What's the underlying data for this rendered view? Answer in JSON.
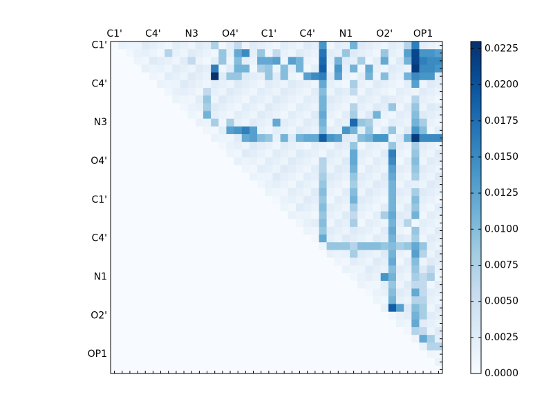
{
  "chart_data": {
    "type": "heatmap",
    "title": "",
    "xlabel": "",
    "ylabel": "",
    "tick_labels": [
      "C1'",
      "C4'",
      "N3",
      "O4'",
      "C1'",
      "C4'",
      "N1",
      "O2'",
      "OP1"
    ],
    "n_cells": 43,
    "colorbar": {
      "min": 0.0,
      "max": 0.023,
      "ticks": [
        0.0,
        0.0025,
        0.005,
        0.0075,
        0.01,
        0.0125,
        0.015,
        0.0175,
        0.02,
        0.0225
      ],
      "tick_labels": [
        "0.0000",
        "0.0025",
        "0.0050",
        "0.0075",
        "0.0100",
        "0.0125",
        "0.0150",
        "0.0175",
        "0.0200",
        "0.0225"
      ],
      "colormap": [
        "#f7fbff",
        "#deebf7",
        "#c6dbef",
        "#9ecae1",
        "#6baed6",
        "#4292c6",
        "#2171b5",
        "#08519c",
        "#08306b"
      ]
    },
    "strong_cells": [
      [
        0,
        13,
        0.0075
      ],
      [
        0,
        16,
        0.006
      ],
      [
        0,
        27,
        0.014
      ],
      [
        0,
        31,
        0.011
      ],
      [
        0,
        38,
        0.007
      ],
      [
        0,
        39,
        0.016
      ],
      [
        1,
        7,
        0.007
      ],
      [
        1,
        14,
        0.009
      ],
      [
        1,
        16,
        0.012
      ],
      [
        1,
        17,
        0.015
      ],
      [
        1,
        19,
        0.009
      ],
      [
        1,
        21,
        0.006
      ],
      [
        1,
        27,
        0.017
      ],
      [
        1,
        30,
        0.009
      ],
      [
        1,
        35,
        0.009
      ],
      [
        1,
        38,
        0.013
      ],
      [
        1,
        39,
        0.021
      ],
      [
        1,
        40,
        0.014
      ],
      [
        1,
        41,
        0.014
      ],
      [
        1,
        42,
        0.013
      ],
      [
        2,
        10,
        0.006
      ],
      [
        2,
        14,
        0.009
      ],
      [
        2,
        16,
        0.01
      ],
      [
        2,
        19,
        0.012
      ],
      [
        2,
        20,
        0.012
      ],
      [
        2,
        21,
        0.013
      ],
      [
        2,
        23,
        0.013
      ],
      [
        2,
        24,
        0.011
      ],
      [
        2,
        27,
        0.018
      ],
      [
        2,
        29,
        0.011
      ],
      [
        2,
        32,
        0.008
      ],
      [
        2,
        35,
        0.012
      ],
      [
        2,
        38,
        0.011
      ],
      [
        2,
        39,
        0.021
      ],
      [
        2,
        40,
        0.016
      ],
      [
        2,
        41,
        0.015
      ],
      [
        2,
        42,
        0.015
      ],
      [
        3,
        13,
        0.016
      ],
      [
        3,
        16,
        0.011
      ],
      [
        3,
        17,
        0.011
      ],
      [
        3,
        19,
        0.008
      ],
      [
        3,
        20,
        0.009
      ],
      [
        3,
        22,
        0.01
      ],
      [
        3,
        24,
        0.011
      ],
      [
        3,
        27,
        0.019
      ],
      [
        3,
        29,
        0.014
      ],
      [
        3,
        31,
        0.011
      ],
      [
        3,
        33,
        0.012
      ],
      [
        3,
        39,
        0.022
      ],
      [
        3,
        40,
        0.015
      ],
      [
        3,
        41,
        0.015
      ],
      [
        3,
        42,
        0.014
      ],
      [
        4,
        13,
        0.0228
      ],
      [
        4,
        15,
        0.009
      ],
      [
        4,
        16,
        0.009
      ],
      [
        4,
        20,
        0.009
      ],
      [
        4,
        22,
        0.01
      ],
      [
        4,
        25,
        0.013
      ],
      [
        4,
        26,
        0.015
      ],
      [
        4,
        27,
        0.016
      ],
      [
        4,
        29,
        0.013
      ],
      [
        4,
        33,
        0.011
      ],
      [
        4,
        35,
        0.01
      ],
      [
        4,
        38,
        0.011
      ],
      [
        4,
        39,
        0.015
      ],
      [
        4,
        40,
        0.014
      ],
      [
        4,
        41,
        0.014
      ],
      [
        5,
        27,
        0.012
      ],
      [
        5,
        31,
        0.008
      ],
      [
        5,
        39,
        0.013
      ],
      [
        6,
        12,
        0.006
      ],
      [
        6,
        27,
        0.01
      ],
      [
        6,
        31,
        0.006
      ],
      [
        7,
        12,
        0.009
      ],
      [
        7,
        27,
        0.011
      ],
      [
        7,
        39,
        0.007
      ],
      [
        8,
        12,
        0.008
      ],
      [
        8,
        27,
        0.011
      ],
      [
        8,
        31,
        0.007
      ],
      [
        8,
        36,
        0.009
      ],
      [
        8,
        39,
        0.009
      ],
      [
        9,
        12,
        0.011
      ],
      [
        9,
        27,
        0.012
      ],
      [
        9,
        31,
        0.008
      ],
      [
        9,
        34,
        0.011
      ],
      [
        9,
        39,
        0.01
      ],
      [
        10,
        13,
        0.008
      ],
      [
        10,
        15,
        0.008
      ],
      [
        10,
        21,
        0.012
      ],
      [
        10,
        27,
        0.011
      ],
      [
        10,
        31,
        0.018
      ],
      [
        10,
        32,
        0.009
      ],
      [
        10,
        33,
        0.008
      ],
      [
        10,
        39,
        0.011
      ],
      [
        10,
        40,
        0.008
      ],
      [
        11,
        15,
        0.013
      ],
      [
        11,
        16,
        0.014
      ],
      [
        11,
        17,
        0.016
      ],
      [
        11,
        18,
        0.013
      ],
      [
        11,
        27,
        0.01
      ],
      [
        11,
        30,
        0.014
      ],
      [
        11,
        31,
        0.011
      ],
      [
        11,
        33,
        0.009
      ],
      [
        11,
        36,
        0.009
      ],
      [
        11,
        39,
        0.014
      ],
      [
        11,
        40,
        0.01
      ],
      [
        12,
        17,
        0.012
      ],
      [
        12,
        18,
        0.013
      ],
      [
        12,
        19,
        0.01
      ],
      [
        12,
        20,
        0.009
      ],
      [
        12,
        22,
        0.011
      ],
      [
        12,
        24,
        0.011
      ],
      [
        12,
        25,
        0.012
      ],
      [
        12,
        26,
        0.012
      ],
      [
        12,
        27,
        0.019
      ],
      [
        12,
        28,
        0.014
      ],
      [
        12,
        29,
        0.013
      ],
      [
        12,
        32,
        0.01
      ],
      [
        12,
        33,
        0.011
      ],
      [
        12,
        34,
        0.014
      ],
      [
        12,
        35,
        0.014
      ],
      [
        12,
        38,
        0.011
      ],
      [
        12,
        39,
        0.022
      ],
      [
        12,
        40,
        0.015
      ],
      [
        12,
        41,
        0.015
      ],
      [
        12,
        42,
        0.015
      ],
      [
        13,
        31,
        0.009
      ],
      [
        13,
        36,
        0.009
      ],
      [
        13,
        39,
        0.008
      ],
      [
        14,
        31,
        0.012
      ],
      [
        14,
        36,
        0.016
      ],
      [
        14,
        39,
        0.009
      ],
      [
        15,
        27,
        0.007
      ],
      [
        15,
        31,
        0.012
      ],
      [
        15,
        36,
        0.015
      ],
      [
        15,
        39,
        0.01
      ],
      [
        16,
        27,
        0.007
      ],
      [
        16,
        31,
        0.011
      ],
      [
        16,
        36,
        0.013
      ],
      [
        16,
        39,
        0.009
      ],
      [
        17,
        27,
        0.008
      ],
      [
        17,
        31,
        0.009
      ],
      [
        17,
        36,
        0.012
      ],
      [
        17,
        39,
        0.008
      ],
      [
        18,
        27,
        0.009
      ],
      [
        18,
        31,
        0.008
      ],
      [
        18,
        36,
        0.011
      ],
      [
        19,
        27,
        0.01
      ],
      [
        19,
        31,
        0.01
      ],
      [
        19,
        36,
        0.011
      ],
      [
        19,
        39,
        0.008
      ],
      [
        20,
        27,
        0.009
      ],
      [
        20,
        31,
        0.011
      ],
      [
        20,
        36,
        0.011
      ],
      [
        20,
        39,
        0.01
      ],
      [
        21,
        27,
        0.01
      ],
      [
        21,
        31,
        0.008
      ],
      [
        21,
        36,
        0.011
      ],
      [
        21,
        39,
        0.009
      ],
      [
        22,
        27,
        0.009
      ],
      [
        22,
        31,
        0.006
      ],
      [
        22,
        35,
        0.008
      ],
      [
        22,
        36,
        0.012
      ],
      [
        22,
        39,
        0.011
      ],
      [
        23,
        27,
        0.01
      ],
      [
        23,
        31,
        0.008
      ],
      [
        23,
        36,
        0.011
      ],
      [
        23,
        38,
        0.007
      ],
      [
        24,
        27,
        0.009
      ],
      [
        24,
        36,
        0.012
      ],
      [
        24,
        39,
        0.009
      ],
      [
        25,
        27,
        0.012
      ],
      [
        25,
        36,
        0.011
      ],
      [
        25,
        39,
        0.008
      ],
      [
        26,
        28,
        0.009
      ],
      [
        26,
        29,
        0.009
      ],
      [
        26,
        30,
        0.009
      ],
      [
        26,
        31,
        0.007
      ],
      [
        26,
        32,
        0.01
      ],
      [
        26,
        33,
        0.01
      ],
      [
        26,
        34,
        0.01
      ],
      [
        26,
        35,
        0.009
      ],
      [
        26,
        36,
        0.01
      ],
      [
        26,
        37,
        0.008
      ],
      [
        26,
        38,
        0.009
      ],
      [
        26,
        39,
        0.012
      ],
      [
        26,
        40,
        0.009
      ],
      [
        27,
        31,
        0.008
      ],
      [
        27,
        36,
        0.011
      ],
      [
        27,
        39,
        0.013
      ],
      [
        27,
        40,
        0.007
      ],
      [
        28,
        36,
        0.012
      ],
      [
        28,
        39,
        0.01
      ],
      [
        29,
        36,
        0.01
      ],
      [
        29,
        39,
        0.009
      ],
      [
        29,
        41,
        0.006
      ],
      [
        30,
        35,
        0.014
      ],
      [
        30,
        36,
        0.011
      ],
      [
        30,
        39,
        0.008
      ],
      [
        30,
        40,
        0.006
      ],
      [
        30,
        41,
        0.008
      ],
      [
        31,
        36,
        0.009
      ],
      [
        31,
        39,
        0.006
      ],
      [
        31,
        40,
        0.006
      ],
      [
        32,
        36,
        0.01
      ],
      [
        32,
        39,
        0.012
      ],
      [
        32,
        40,
        0.006
      ],
      [
        33,
        36,
        0.011
      ],
      [
        33,
        39,
        0.007
      ],
      [
        33,
        40,
        0.007
      ],
      [
        34,
        36,
        0.019
      ],
      [
        34,
        37,
        0.013
      ],
      [
        34,
        39,
        0.01
      ],
      [
        34,
        40,
        0.008
      ],
      [
        35,
        39,
        0.011
      ],
      [
        35,
        40,
        0.008
      ],
      [
        36,
        39,
        0.012
      ],
      [
        37,
        39,
        0.007
      ],
      [
        37,
        40,
        0.006
      ],
      [
        38,
        40,
        0.012
      ],
      [
        38,
        41,
        0.008
      ],
      [
        39,
        41,
        0.007
      ],
      [
        39,
        42,
        0.007
      ]
    ]
  }
}
